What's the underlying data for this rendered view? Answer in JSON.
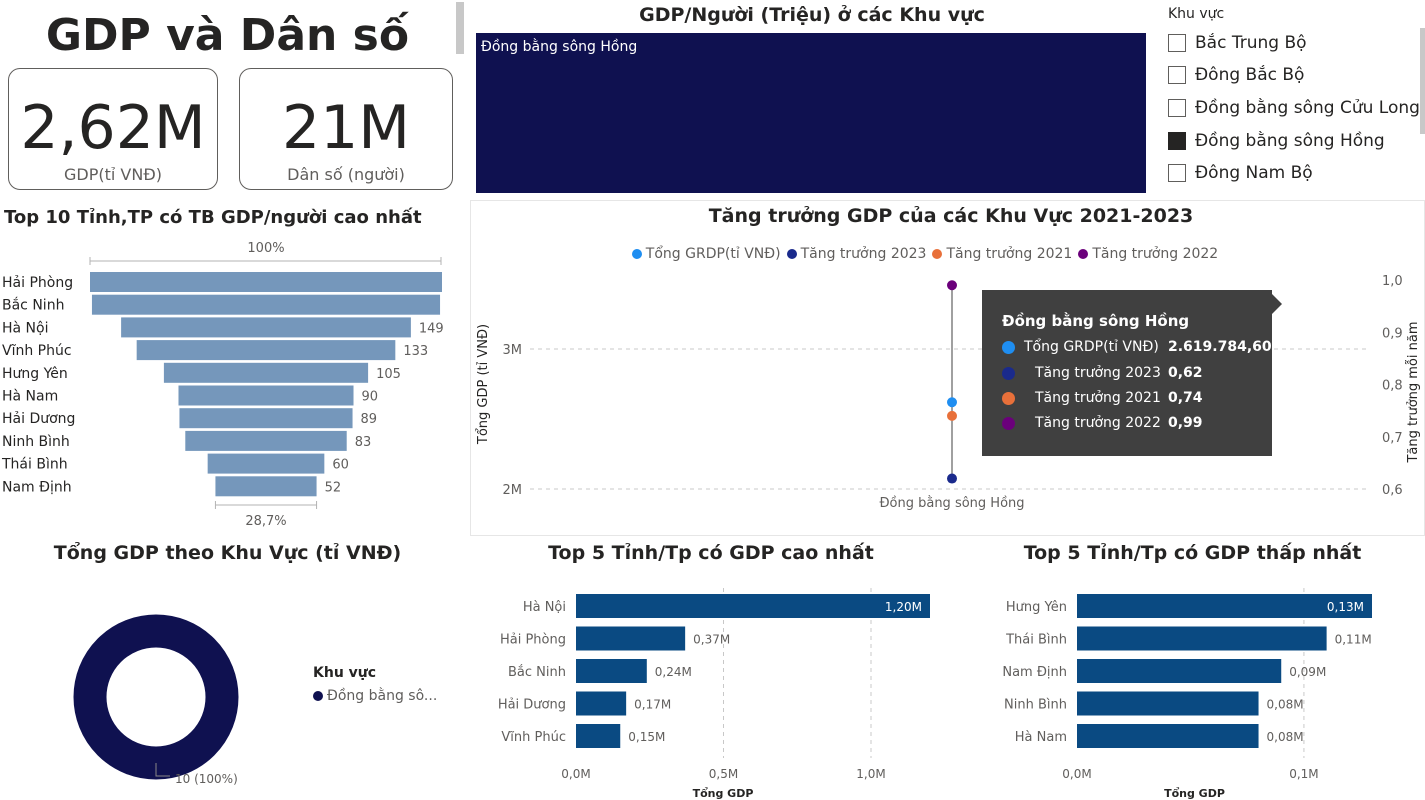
{
  "header": {
    "title": "GDP và Dân số"
  },
  "cards": {
    "gdp": {
      "value": "2,62M",
      "label": "GDP(tỉ VNĐ)"
    },
    "population": {
      "value": "21M",
      "label": "Dân số (người)"
    }
  },
  "treemap": {
    "title": "GDP/Người (Triệu) ở các Khu vực",
    "tile_label": "Đồng bằng sông Hồng",
    "color": "#0f1150"
  },
  "slicer": {
    "header": "Khu vực",
    "items": [
      {
        "label": "Bắc Trung Bộ",
        "checked": false
      },
      {
        "label": "Đông Bắc Bộ",
        "checked": false
      },
      {
        "label": "Đồng bằng sông Cửu Long",
        "checked": false
      },
      {
        "label": "Đồng bằng sông Hồng",
        "checked": true
      },
      {
        "label": "Đông Nam Bộ",
        "checked": false
      }
    ]
  },
  "funnel": {
    "title": "Top 10 Tỉnh,TP có TB GDP/người cao nhất",
    "top_label": "100%",
    "bottom_label": "28,7%",
    "color": "#7597bb"
  },
  "growth": {
    "title": "Tăng trưởng GDP của các Khu Vực 2021-2023",
    "ylabel_left": "Tổng GDP (tỉ VNĐ)",
    "ylabel_right": "Tăng trưởng mỗi năm",
    "x_category": "Đồng bằng sông Hồng",
    "legend": [
      {
        "name": "Tổng GRDP(tỉ VNĐ)",
        "color": "#1f8ef1"
      },
      {
        "name": "Tăng trưởng 2023",
        "color": "#1a2a8c"
      },
      {
        "name": "Tăng trưởng 2021",
        "color": "#e8703a"
      },
      {
        "name": "Tăng trưởng 2022",
        "color": "#6b007b"
      }
    ],
    "left_ticks": [
      "3M",
      "2M"
    ],
    "right_ticks": [
      "1,0",
      "0,9",
      "0,8",
      "0,7",
      "0,6"
    ]
  },
  "tooltip": {
    "title": "Đồng bằng sông Hồng",
    "rows": [
      {
        "label": "Tổng GRDP(tỉ VNĐ)",
        "value": "2.619.784,60",
        "color": "#1f8ef1"
      },
      {
        "label": "Tăng trưởng 2023",
        "value": "0,62",
        "color": "#1a2a8c"
      },
      {
        "label": "Tăng trưởng 2021",
        "value": "0,74",
        "color": "#e8703a"
      },
      {
        "label": "Tăng trưởng 2022",
        "value": "0,99",
        "color": "#6b007b"
      }
    ]
  },
  "donut": {
    "title": "Tổng GDP theo Khu Vực (tỉ VNĐ)",
    "legend_title": "Khu vực",
    "legend_item": "Đồng bằng sô...",
    "data_label": "10 (100%)",
    "color": "#0f1150"
  },
  "top5_high": {
    "title": "Top 5 Tỉnh/Tp có GDP cao nhất",
    "xlabel": "Tổng GDP",
    "ticks": [
      "0,0M",
      "0,5M",
      "1,0M"
    ],
    "color": "#0a4a82"
  },
  "top5_low": {
    "title": "Top 5 Tỉnh/Tp có GDP thấp nhất",
    "xlabel": "Tổng GDP",
    "ticks": [
      "0,0M",
      "0,1M"
    ],
    "color": "#0a4a82"
  },
  "chart_data": [
    {
      "type": "bar",
      "subtype": "funnel",
      "title": "Top 10 Tỉnh,TP có TB GDP/người cao nhất",
      "categories": [
        "Hải Phòng",
        "Bắc Ninh",
        "Hà Nội",
        "Vĩnh Phúc",
        "Hưng Yên",
        "Hà Nam",
        "Hải Dương",
        "Ninh Bình",
        "Thái Bình",
        "Nam Định"
      ],
      "values": [
        181,
        179,
        149,
        133,
        105,
        90,
        89,
        83,
        60,
        52
      ],
      "labels": [
        "",
        "",
        "149",
        "133",
        "105",
        "90",
        "89",
        "83",
        "60",
        "52"
      ]
    },
    {
      "type": "scatter",
      "title": "Tăng trưởng GDP của các Khu Vực 2021-2023",
      "categories": [
        "Đồng bằng sông Hồng"
      ],
      "series": [
        {
          "name": "Tổng GRDP(tỉ VNĐ)",
          "axis": "left",
          "values": [
            2619784.6
          ]
        },
        {
          "name": "Tăng trưởng 2023",
          "axis": "right",
          "values": [
            0.62
          ]
        },
        {
          "name": "Tăng trưởng 2021",
          "axis": "right",
          "values": [
            0.74
          ]
        },
        {
          "name": "Tăng trưởng 2022",
          "axis": "right",
          "values": [
            0.99
          ]
        }
      ],
      "ylim_left": [
        2000000,
        3000000
      ],
      "ylim_right": [
        0.6,
        1.0
      ],
      "grid": true,
      "legend_position": "top"
    },
    {
      "type": "pie",
      "subtype": "donut",
      "title": "Tổng GDP theo Khu Vực (tỉ VNĐ)",
      "categories": [
        "Đồng bằng sô..."
      ],
      "values": [
        100
      ]
    },
    {
      "type": "bar",
      "orientation": "horizontal",
      "title": "Top 5 Tỉnh/Tp có GDP cao nhất",
      "categories": [
        "Hà Nội",
        "Hải Phòng",
        "Bắc Ninh",
        "Hải Dương",
        "Vĩnh Phúc"
      ],
      "values": [
        1.2,
        0.37,
        0.24,
        0.17,
        0.15
      ],
      "labels": [
        "1,20M",
        "0,37M",
        "0,24M",
        "0,17M",
        "0,15M"
      ],
      "xlabel": "Tổng GDP",
      "xlim": [
        0,
        1.2
      ]
    },
    {
      "type": "bar",
      "orientation": "horizontal",
      "title": "Top 5 Tỉnh/Tp có GDP thấp nhất",
      "categories": [
        "Hưng Yên",
        "Thái Bình",
        "Nam Định",
        "Ninh Bình",
        "Hà Nam"
      ],
      "values": [
        0.13,
        0.11,
        0.09,
        0.08,
        0.08
      ],
      "labels": [
        "0,13M",
        "0,11M",
        "0,09M",
        "0,08M",
        "0,08M"
      ],
      "xlabel": "Tổng GDP",
      "xlim": [
        0,
        0.13
      ]
    }
  ]
}
